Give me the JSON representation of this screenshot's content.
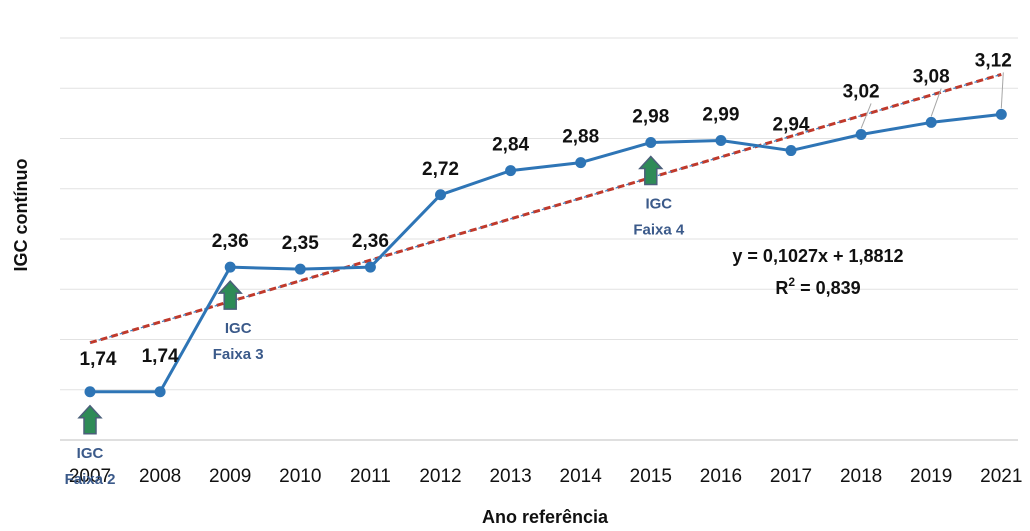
{
  "chart_data": {
    "type": "line",
    "title": "",
    "xlabel": "Ano referência",
    "ylabel": "IGC contínuo",
    "categories": [
      "2007",
      "2008",
      "2009",
      "2010",
      "2011",
      "2012",
      "2013",
      "2014",
      "2015",
      "2016",
      "2017",
      "2018",
      "2019",
      "2021"
    ],
    "series": [
      {
        "values": [
          1.74,
          1.74,
          2.36,
          2.35,
          2.36,
          2.72,
          2.84,
          2.88,
          2.98,
          2.99,
          2.94,
          3.02,
          3.08,
          3.12
        ],
        "labels": [
          "1,74",
          "1,74",
          "2,36",
          "2,35",
          "2,36",
          "2,72",
          "2,84",
          "2,88",
          "2,98",
          "2,99",
          "2,94",
          "3,02",
          "3,08",
          "3,12"
        ],
        "color": "#2e75b6"
      }
    ],
    "trendline": {
      "slope": 0.1027,
      "intercept": 1.8812,
      "color": "#c0392b",
      "equation": "y = 0,1027x + 1,8812",
      "r2_prefix": "R",
      "r2_sup": "2",
      "r2_suffix": " = 0,839"
    },
    "ylim": [
      1.5,
      3.5
    ],
    "grid": true,
    "annotations": [
      {
        "category_index": 0,
        "lines": [
          "IGC",
          "Faixa 2"
        ]
      },
      {
        "category_index": 2,
        "lines": [
          "IGC",
          "Faixa 3"
        ]
      },
      {
        "category_index": 8,
        "lines": [
          "IGC",
          "Faixa 4"
        ]
      }
    ],
    "arrow_color": "#2e8b57"
  }
}
